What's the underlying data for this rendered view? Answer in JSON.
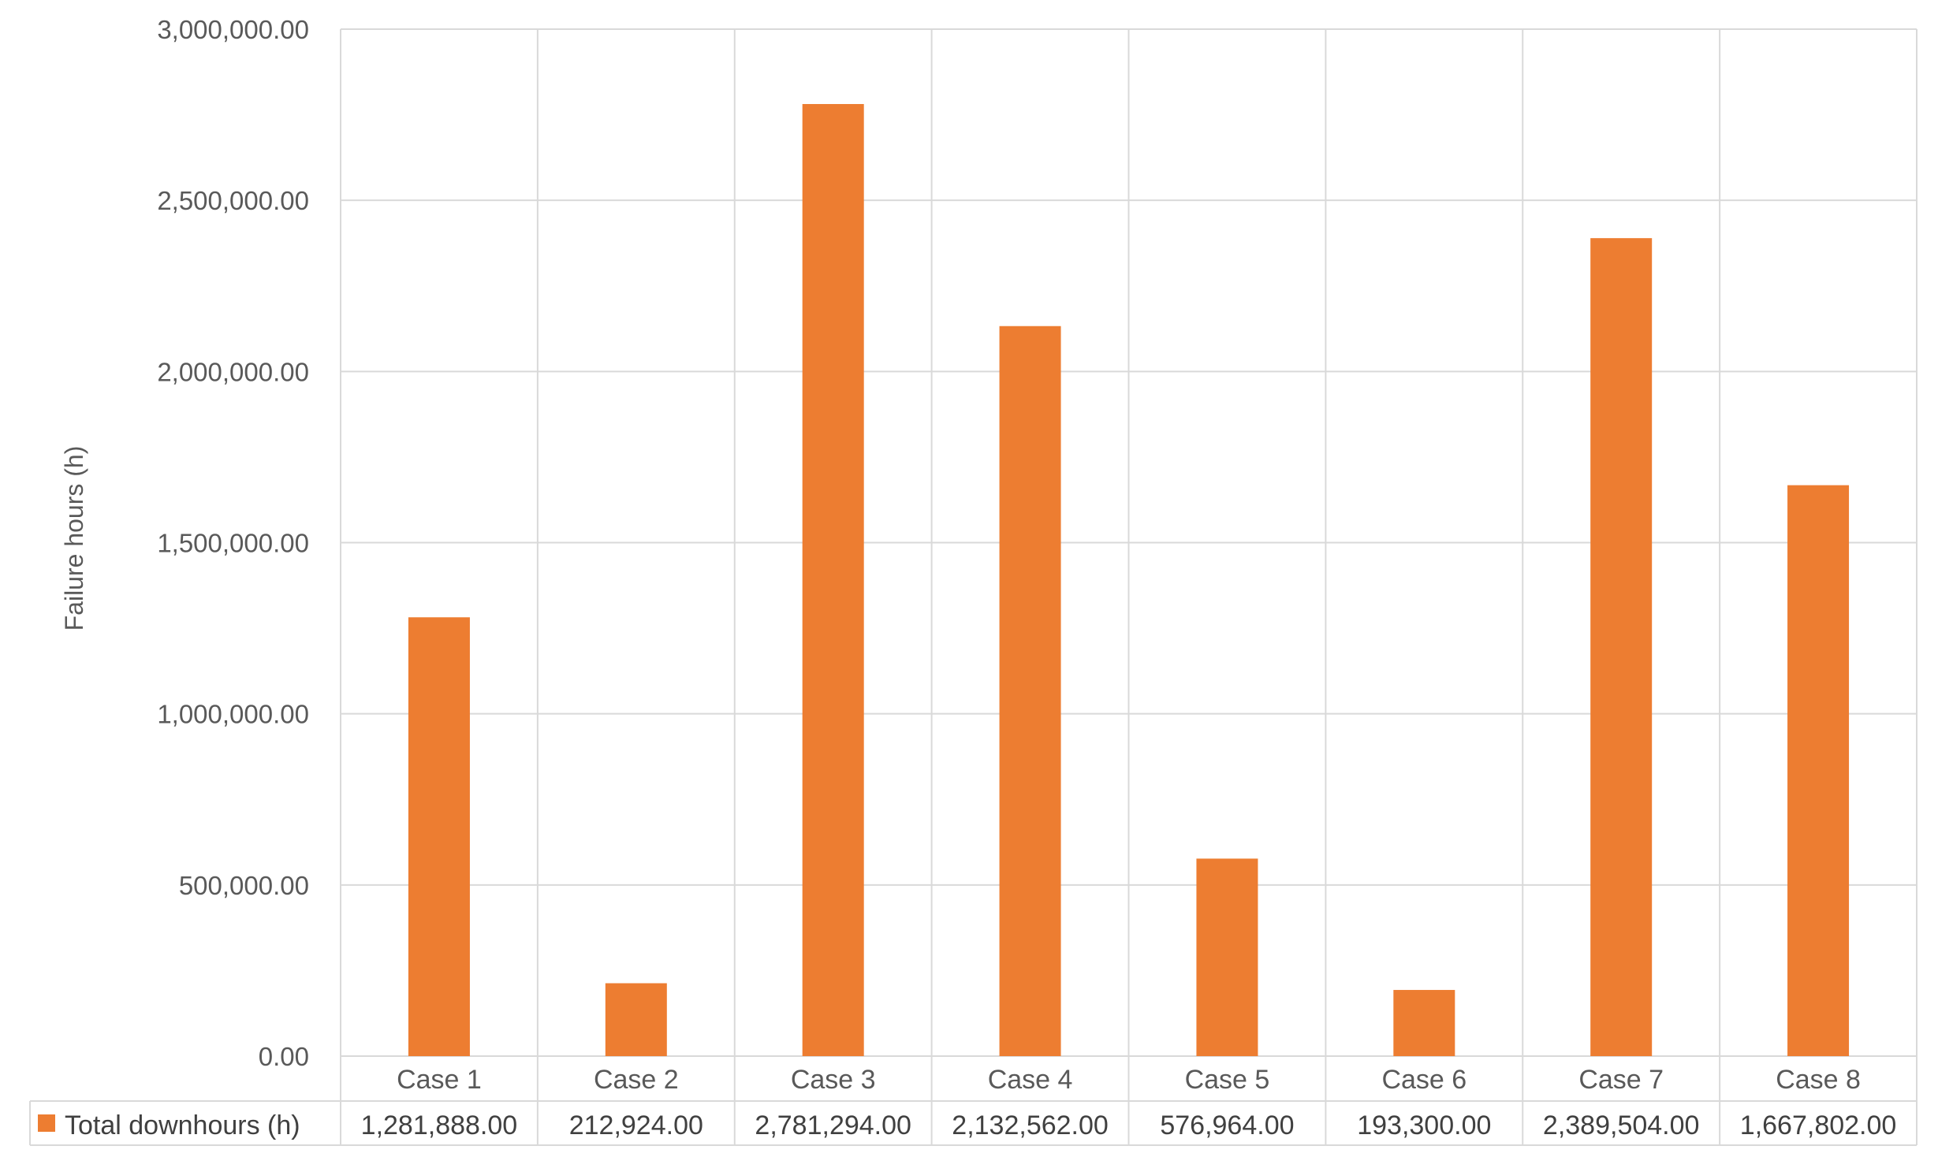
{
  "chart_data": {
    "type": "bar",
    "title": "",
    "xlabel": "",
    "ylabel": "Failure hours (h)",
    "categories": [
      "Case 1",
      "Case 2",
      "Case 3",
      "Case 4",
      "Case 5",
      "Case 6",
      "Case 7",
      "Case 8"
    ],
    "series": [
      {
        "name": "Total downhours (h)",
        "values": [
          1281888,
          212924,
          2781294,
          2132562,
          576964,
          193300,
          2389504,
          1667802
        ],
        "value_labels": [
          "1,281,888.00",
          "212,924.00",
          "2,781,294.00",
          "2,132,562.00",
          "576,964.00",
          "193,300.00",
          "2,389,504.00",
          "1,667,802.00"
        ],
        "color": "#ED7D31"
      }
    ],
    "ylim": [
      0,
      3000000
    ],
    "yticks": [
      0,
      500000,
      1000000,
      1500000,
      2000000,
      2500000,
      3000000
    ],
    "ytick_labels": [
      "0.00",
      "500,000.00",
      "1,000,000.00",
      "1,500,000.00",
      "2,000,000.00",
      "2,500,000.00",
      "3,000,000.00"
    ],
    "grid": true,
    "data_table": true,
    "legend_placement": "data-table-left"
  },
  "colors": {
    "bar": "#ED7D31",
    "grid": "#D9D9D9",
    "text": "#595959"
  }
}
